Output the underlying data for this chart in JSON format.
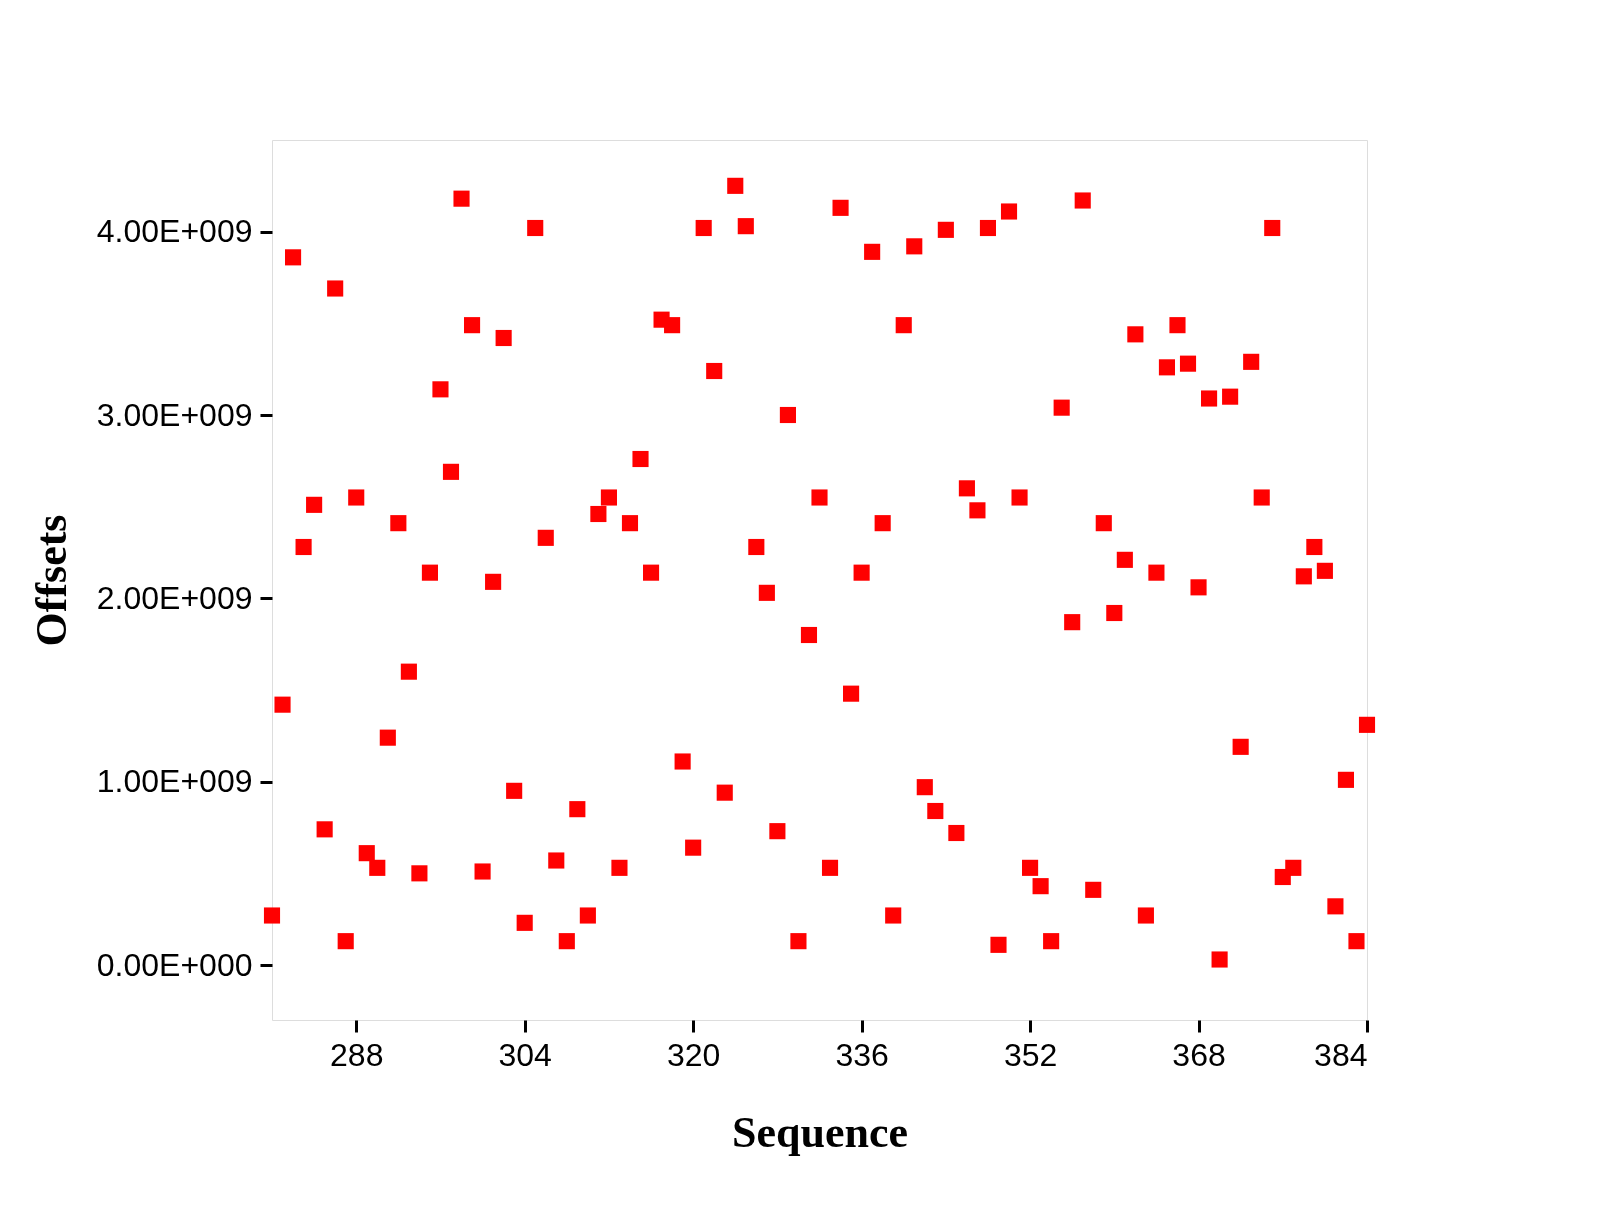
{
  "chart_data": {
    "type": "scatter",
    "xlabel": "Sequence",
    "ylabel": "Offsets",
    "x": [
      280,
      281,
      282,
      283,
      284,
      285,
      286,
      287,
      288,
      289,
      290,
      291,
      292,
      293,
      294,
      295,
      296,
      297,
      298,
      299,
      300,
      301,
      302,
      303,
      304,
      305,
      306,
      307,
      308,
      309,
      310,
      311,
      312,
      313,
      314,
      315,
      316,
      317,
      318,
      319,
      320,
      321,
      322,
      323,
      324,
      325,
      326,
      327,
      328,
      329,
      330,
      331,
      332,
      333,
      334,
      335,
      336,
      337,
      338,
      339,
      340,
      341,
      342,
      343,
      344,
      345,
      346,
      347,
      348,
      349,
      350,
      351,
      352,
      353,
      354,
      355,
      356,
      357,
      358,
      359,
      360,
      361,
      362,
      363,
      364,
      365,
      366,
      367,
      368,
      369,
      370,
      371,
      372,
      373,
      374,
      375,
      376,
      377,
      378,
      379,
      380,
      381,
      382,
      383,
      384
    ],
    "series": [
      {
        "color": "#ff0000",
        "values": [
          270000000,
          1420000000,
          3860000000,
          2280000000,
          2510000000,
          740000000,
          3690000000,
          130000000,
          2550000000,
          610000000,
          530000000,
          1240000000,
          2410000000,
          1600000000,
          500000000,
          2140000000,
          3140000000,
          2690000000,
          4180000000,
          3490000000,
          510000000,
          2090000000,
          3420000000,
          950000000,
          230000000,
          4020000000,
          2330000000,
          570000000,
          130000000,
          850000000,
          270000000,
          2460000000,
          2550000000,
          530000000,
          2410000000,
          2760000000,
          2140000000,
          3520000000,
          3490000000,
          1110000000,
          640000000,
          4020000000,
          3240000000,
          940000000,
          4250000000,
          4030000000,
          2280000000,
          2030000000,
          730000000,
          3000000000,
          130000000,
          1800000000,
          2550000000,
          530000000,
          4130000000,
          1480000000,
          2140000000,
          3890000000,
          2410000000,
          270000000,
          3490000000,
          3920000000,
          970000000,
          840000000,
          4010000000,
          720000000,
          2600000000,
          2480000000,
          4020000000,
          110000000,
          4110000000,
          2550000000,
          530000000,
          430000000,
          130000000,
          3040000000,
          1870000000,
          4170000000,
          410000000,
          2410000000,
          1920000000,
          2210000000,
          3440000000,
          270000000,
          2140000000,
          3260000000,
          3490000000,
          3280000000,
          2060000000,
          3090000000,
          30000000,
          3100000000,
          1190000000,
          3290000000,
          2550000000,
          4020000000,
          480000000,
          530000000,
          2120000000,
          2280000000,
          2150000000,
          320000000,
          1010000000,
          130000000,
          1310000000
        ]
      }
    ],
    "xlim": [
      280,
      384
    ],
    "xticks": [
      288,
      304,
      320,
      336,
      352,
      368,
      384
    ],
    "ylim": [
      -300000000,
      4500000000
    ],
    "yticks": [
      {
        "value": 0,
        "label": "0.00E+000"
      },
      {
        "value": 1000000000,
        "label": "1.00E+009"
      },
      {
        "value": 2000000000,
        "label": "2.00E+009"
      },
      {
        "value": 3000000000,
        "label": "3.00E+009"
      },
      {
        "value": 4000000000,
        "label": "4.00E+009"
      }
    ],
    "marker": "square",
    "grid": false,
    "legend": false
  }
}
